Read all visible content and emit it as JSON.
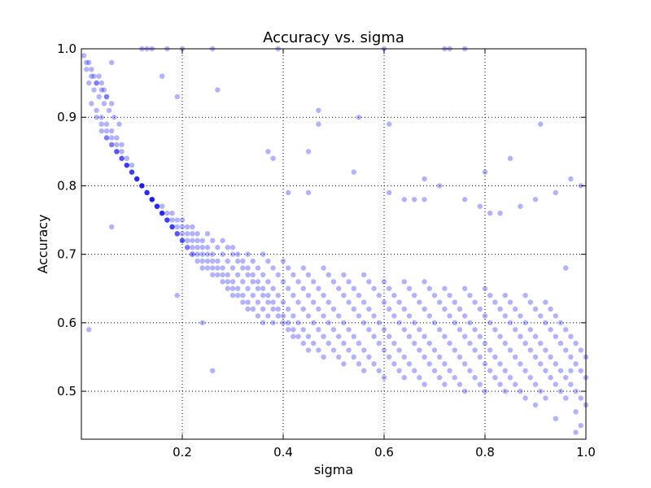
{
  "chart_data": {
    "type": "scatter",
    "title": "Accuracy vs. sigma",
    "xlabel": "sigma",
    "ylabel": "Accuracy",
    "xlim": [
      0.0,
      1.0
    ],
    "ylim": [
      0.43,
      1.0
    ],
    "xticks": [
      0.2,
      0.4,
      0.6,
      0.8,
      1.0
    ],
    "xtick_labels": [
      "0.2",
      "0.4",
      "0.6",
      "0.8",
      "1.0"
    ],
    "yticks": [
      0.5,
      0.6,
      0.7,
      0.8,
      0.9,
      1.0
    ],
    "ytick_labels": [
      "0.5",
      "0.6",
      "0.7",
      "0.8",
      "0.9",
      "1.0"
    ],
    "grid": true,
    "marker_color": "#0000ff",
    "marker_alpha": 0.3,
    "series": [
      {
        "x": [
          0.005,
          0.01,
          0.015,
          0.02,
          0.025,
          0.03,
          0.035,
          0.04,
          0.045,
          0.05,
          0.01,
          0.02,
          0.03,
          0.04,
          0.05,
          0.06,
          0.015,
          0.025,
          0.035,
          0.045,
          0.055,
          0.065,
          0.075,
          0.02,
          0.03,
          0.04,
          0.05,
          0.06,
          0.07,
          0.08,
          0.03,
          0.04,
          0.05,
          0.06,
          0.07,
          0.08,
          0.09,
          0.1,
          0.04,
          0.05,
          0.06,
          0.07,
          0.08,
          0.09,
          0.1,
          0.11,
          0.12,
          0.05,
          0.06,
          0.07,
          0.08,
          0.09,
          0.1,
          0.11,
          0.12,
          0.13,
          0.14,
          0.07,
          0.08,
          0.09,
          0.1,
          0.11,
          0.12,
          0.13,
          0.14,
          0.15,
          0.16,
          0.09,
          0.1,
          0.11,
          0.12,
          0.13,
          0.14,
          0.15,
          0.16,
          0.17,
          0.18,
          0.11,
          0.12,
          0.13,
          0.14,
          0.15,
          0.16,
          0.17,
          0.18,
          0.19,
          0.2,
          0.12,
          0.13,
          0.14,
          0.15,
          0.16,
          0.17,
          0.18,
          0.19,
          0.2,
          0.21,
          0.22,
          0.14,
          0.15,
          0.16,
          0.17,
          0.18,
          0.19,
          0.2,
          0.21,
          0.22,
          0.23,
          0.24,
          0.16,
          0.17,
          0.18,
          0.19,
          0.2,
          0.21,
          0.22,
          0.23,
          0.24,
          0.25,
          0.26,
          0.18,
          0.19,
          0.2,
          0.21,
          0.22,
          0.23,
          0.24,
          0.25,
          0.26,
          0.27,
          0.28,
          0.29,
          0.3,
          0.2,
          0.21,
          0.22,
          0.23,
          0.24,
          0.25,
          0.26,
          0.27,
          0.28,
          0.29,
          0.3,
          0.31,
          0.32,
          0.33,
          0.22,
          0.23,
          0.24,
          0.25,
          0.26,
          0.27,
          0.28,
          0.29,
          0.3,
          0.31,
          0.32,
          0.33,
          0.34,
          0.35,
          0.36,
          0.25,
          0.26,
          0.27,
          0.28,
          0.29,
          0.3,
          0.31,
          0.32,
          0.33,
          0.34,
          0.35,
          0.36,
          0.37,
          0.38,
          0.28,
          0.29,
          0.3,
          0.31,
          0.32,
          0.33,
          0.34,
          0.35,
          0.36,
          0.37,
          0.38,
          0.39,
          0.4,
          0.41,
          0.42,
          0.3,
          0.31,
          0.32,
          0.33,
          0.34,
          0.35,
          0.36,
          0.37,
          0.38,
          0.39,
          0.4,
          0.41,
          0.42,
          0.43,
          0.44,
          0.45,
          0.33,
          0.34,
          0.35,
          0.36,
          0.37,
          0.38,
          0.39,
          0.4,
          0.41,
          0.42,
          0.43,
          0.44,
          0.45,
          0.46,
          0.47,
          0.48,
          0.36,
          0.37,
          0.38,
          0.39,
          0.4,
          0.41,
          0.42,
          0.43,
          0.44,
          0.45,
          0.46,
          0.47,
          0.48,
          0.49,
          0.5,
          0.51,
          0.52,
          0.4,
          0.41,
          0.42,
          0.43,
          0.44,
          0.45,
          0.46,
          0.47,
          0.48,
          0.49,
          0.5,
          0.51,
          0.52,
          0.53,
          0.54,
          0.55,
          0.56,
          0.44,
          0.45,
          0.46,
          0.47,
          0.48,
          0.49,
          0.5,
          0.51,
          0.52,
          0.53,
          0.54,
          0.55,
          0.56,
          0.57,
          0.58,
          0.59,
          0.6,
          0.48,
          0.49,
          0.5,
          0.51,
          0.52,
          0.53,
          0.54,
          0.55,
          0.56,
          0.57,
          0.58,
          0.59,
          0.6,
          0.61,
          0.62,
          0.63,
          0.64,
          0.52,
          0.53,
          0.54,
          0.55,
          0.56,
          0.57,
          0.58,
          0.59,
          0.6,
          0.61,
          0.62,
          0.63,
          0.64,
          0.65,
          0.66,
          0.67,
          0.68,
          0.56,
          0.57,
          0.58,
          0.59,
          0.6,
          0.61,
          0.62,
          0.63,
          0.64,
          0.65,
          0.66,
          0.67,
          0.68,
          0.69,
          0.7,
          0.71,
          0.72,
          0.6,
          0.61,
          0.62,
          0.63,
          0.64,
          0.65,
          0.66,
          0.67,
          0.68,
          0.69,
          0.7,
          0.71,
          0.72,
          0.73,
          0.74,
          0.75,
          0.76,
          0.64,
          0.65,
          0.66,
          0.67,
          0.68,
          0.69,
          0.7,
          0.71,
          0.72,
          0.73,
          0.74,
          0.75,
          0.76,
          0.77,
          0.78,
          0.79,
          0.8,
          0.68,
          0.69,
          0.7,
          0.71,
          0.72,
          0.73,
          0.74,
          0.75,
          0.76,
          0.77,
          0.78,
          0.79,
          0.8,
          0.81,
          0.82,
          0.83,
          0.84,
          0.72,
          0.73,
          0.74,
          0.75,
          0.76,
          0.77,
          0.78,
          0.79,
          0.8,
          0.81,
          0.82,
          0.83,
          0.84,
          0.85,
          0.86,
          0.87,
          0.88,
          0.76,
          0.77,
          0.78,
          0.79,
          0.8,
          0.81,
          0.82,
          0.83,
          0.84,
          0.85,
          0.86,
          0.87,
          0.88,
          0.89,
          0.9,
          0.91,
          0.92,
          0.8,
          0.81,
          0.82,
          0.83,
          0.84,
          0.85,
          0.86,
          0.87,
          0.88,
          0.89,
          0.9,
          0.91,
          0.92,
          0.93,
          0.94,
          0.95,
          0.96,
          0.84,
          0.85,
          0.86,
          0.87,
          0.88,
          0.89,
          0.9,
          0.91,
          0.92,
          0.93,
          0.94,
          0.95,
          0.96,
          0.97,
          0.98,
          0.99,
          1.0,
          0.88,
          0.89,
          0.9,
          0.91,
          0.92,
          0.93,
          0.94,
          0.95,
          0.96,
          0.97,
          0.98,
          0.99,
          1.0,
          0.92,
          0.93,
          0.94,
          0.95,
          0.96,
          0.97,
          0.98,
          0.99,
          1.0,
          0.12,
          0.13,
          0.14,
          0.17,
          0.2,
          0.26,
          0.39,
          0.6,
          0.72,
          0.73,
          0.76,
          0.015,
          0.06,
          0.24,
          0.19,
          0.26,
          0.47,
          0.47,
          0.61,
          0.85,
          0.94,
          0.98,
          0.9,
          0.38,
          0.45,
          0.54,
          0.68,
          0.71,
          0.8,
          0.97,
          0.99,
          0.06,
          0.16,
          0.19,
          0.27,
          0.55,
          0.37,
          0.41,
          0.45,
          0.61,
          0.64,
          0.66,
          0.68,
          0.76,
          0.79,
          0.81,
          0.83,
          0.87,
          0.9,
          0.91,
          0.94,
          0.96,
          0.97,
          0.98,
          0.99
        ],
        "y": [
          0.99,
          0.98,
          0.98,
          0.97,
          0.96,
          0.95,
          0.96,
          0.95,
          0.94,
          0.93,
          0.97,
          0.96,
          0.95,
          0.94,
          0.93,
          0.92,
          0.95,
          0.94,
          0.93,
          0.92,
          0.91,
          0.9,
          0.89,
          0.92,
          0.91,
          0.9,
          0.89,
          0.88,
          0.87,
          0.86,
          0.9,
          0.89,
          0.88,
          0.87,
          0.86,
          0.85,
          0.84,
          0.83,
          0.88,
          0.87,
          0.86,
          0.85,
          0.84,
          0.83,
          0.82,
          0.81,
          0.8,
          0.87,
          0.86,
          0.85,
          0.84,
          0.83,
          0.82,
          0.81,
          0.8,
          0.79,
          0.78,
          0.85,
          0.84,
          0.83,
          0.82,
          0.81,
          0.8,
          0.79,
          0.78,
          0.77,
          0.76,
          0.83,
          0.82,
          0.81,
          0.8,
          0.79,
          0.78,
          0.77,
          0.76,
          0.75,
          0.74,
          0.81,
          0.8,
          0.79,
          0.78,
          0.77,
          0.76,
          0.75,
          0.74,
          0.73,
          0.72,
          0.8,
          0.79,
          0.78,
          0.77,
          0.76,
          0.75,
          0.74,
          0.73,
          0.72,
          0.71,
          0.7,
          0.78,
          0.77,
          0.76,
          0.75,
          0.74,
          0.73,
          0.72,
          0.71,
          0.7,
          0.69,
          0.68,
          0.77,
          0.76,
          0.75,
          0.74,
          0.73,
          0.72,
          0.71,
          0.7,
          0.69,
          0.68,
          0.67,
          0.76,
          0.75,
          0.74,
          0.73,
          0.72,
          0.71,
          0.7,
          0.69,
          0.68,
          0.67,
          0.66,
          0.65,
          0.64,
          0.75,
          0.74,
          0.73,
          0.72,
          0.71,
          0.7,
          0.69,
          0.68,
          0.67,
          0.66,
          0.65,
          0.64,
          0.63,
          0.62,
          0.74,
          0.73,
          0.72,
          0.71,
          0.7,
          0.69,
          0.68,
          0.67,
          0.66,
          0.65,
          0.64,
          0.63,
          0.62,
          0.61,
          0.6,
          0.73,
          0.72,
          0.71,
          0.7,
          0.69,
          0.68,
          0.67,
          0.66,
          0.65,
          0.64,
          0.63,
          0.62,
          0.61,
          0.6,
          0.72,
          0.71,
          0.7,
          0.69,
          0.68,
          0.67,
          0.66,
          0.65,
          0.64,
          0.63,
          0.62,
          0.61,
          0.6,
          0.59,
          0.58,
          0.71,
          0.7,
          0.69,
          0.68,
          0.67,
          0.66,
          0.65,
          0.64,
          0.63,
          0.62,
          0.61,
          0.6,
          0.59,
          0.58,
          0.57,
          0.56,
          0.7,
          0.69,
          0.68,
          0.67,
          0.66,
          0.65,
          0.64,
          0.63,
          0.62,
          0.61,
          0.6,
          0.59,
          0.58,
          0.57,
          0.56,
          0.55,
          0.7,
          0.69,
          0.68,
          0.67,
          0.66,
          0.65,
          0.64,
          0.63,
          0.62,
          0.61,
          0.6,
          0.59,
          0.58,
          0.57,
          0.56,
          0.55,
          0.54,
          0.69,
          0.68,
          0.67,
          0.66,
          0.65,
          0.64,
          0.63,
          0.62,
          0.61,
          0.6,
          0.59,
          0.58,
          0.57,
          0.56,
          0.55,
          0.54,
          0.53,
          0.68,
          0.67,
          0.66,
          0.65,
          0.64,
          0.63,
          0.62,
          0.61,
          0.6,
          0.59,
          0.58,
          0.57,
          0.56,
          0.55,
          0.54,
          0.53,
          0.52,
          0.68,
          0.67,
          0.66,
          0.65,
          0.64,
          0.63,
          0.62,
          0.61,
          0.6,
          0.59,
          0.58,
          0.57,
          0.56,
          0.55,
          0.54,
          0.53,
          0.52,
          0.67,
          0.66,
          0.65,
          0.64,
          0.63,
          0.62,
          0.61,
          0.6,
          0.59,
          0.58,
          0.57,
          0.56,
          0.55,
          0.54,
          0.53,
          0.52,
          0.51,
          0.67,
          0.66,
          0.65,
          0.64,
          0.63,
          0.62,
          0.61,
          0.6,
          0.59,
          0.58,
          0.57,
          0.56,
          0.55,
          0.54,
          0.53,
          0.52,
          0.51,
          0.66,
          0.65,
          0.64,
          0.63,
          0.62,
          0.61,
          0.6,
          0.59,
          0.58,
          0.57,
          0.56,
          0.55,
          0.54,
          0.53,
          0.52,
          0.51,
          0.5,
          0.66,
          0.65,
          0.64,
          0.63,
          0.62,
          0.61,
          0.6,
          0.59,
          0.58,
          0.57,
          0.56,
          0.55,
          0.54,
          0.53,
          0.52,
          0.51,
          0.5,
          0.66,
          0.65,
          0.64,
          0.63,
          0.62,
          0.61,
          0.6,
          0.59,
          0.58,
          0.57,
          0.56,
          0.55,
          0.54,
          0.53,
          0.52,
          0.51,
          0.5,
          0.65,
          0.64,
          0.63,
          0.62,
          0.61,
          0.6,
          0.59,
          0.58,
          0.57,
          0.56,
          0.55,
          0.54,
          0.53,
          0.52,
          0.51,
          0.5,
          0.49,
          0.65,
          0.64,
          0.63,
          0.62,
          0.61,
          0.6,
          0.59,
          0.58,
          0.57,
          0.56,
          0.55,
          0.54,
          0.53,
          0.52,
          0.51,
          0.5,
          0.49,
          0.65,
          0.64,
          0.63,
          0.62,
          0.61,
          0.6,
          0.59,
          0.58,
          0.57,
          0.56,
          0.55,
          0.54,
          0.53,
          0.52,
          0.51,
          0.5,
          0.49,
          0.64,
          0.63,
          0.62,
          0.61,
          0.6,
          0.59,
          0.58,
          0.57,
          0.56,
          0.55,
          0.54,
          0.53,
          0.52,
          0.51,
          0.5,
          0.49,
          0.48,
          0.64,
          0.63,
          0.62,
          0.61,
          0.6,
          0.59,
          0.58,
          0.57,
          0.56,
          0.55,
          0.54,
          0.53,
          0.52,
          0.63,
          0.62,
          0.61,
          0.6,
          0.59,
          0.58,
          0.57,
          0.56,
          0.55,
          1.0,
          1.0,
          1.0,
          1.0,
          1.0,
          1.0,
          1.0,
          1.0,
          1.0,
          1.0,
          1.0,
          0.59,
          0.74,
          0.6,
          0.64,
          0.53,
          0.91,
          0.89,
          0.89,
          0.84,
          0.46,
          0.44,
          0.48,
          0.84,
          0.85,
          0.82,
          0.81,
          0.8,
          0.82,
          0.81,
          0.8,
          0.98,
          0.96,
          0.93,
          0.94,
          0.9,
          0.85,
          0.79,
          0.79,
          0.79,
          0.78,
          0.78,
          0.78,
          0.78,
          0.77,
          0.76,
          0.76,
          0.77,
          0.78,
          0.89,
          0.79,
          0.68,
          0.53,
          0.47,
          0.45
        ]
      }
    ]
  }
}
